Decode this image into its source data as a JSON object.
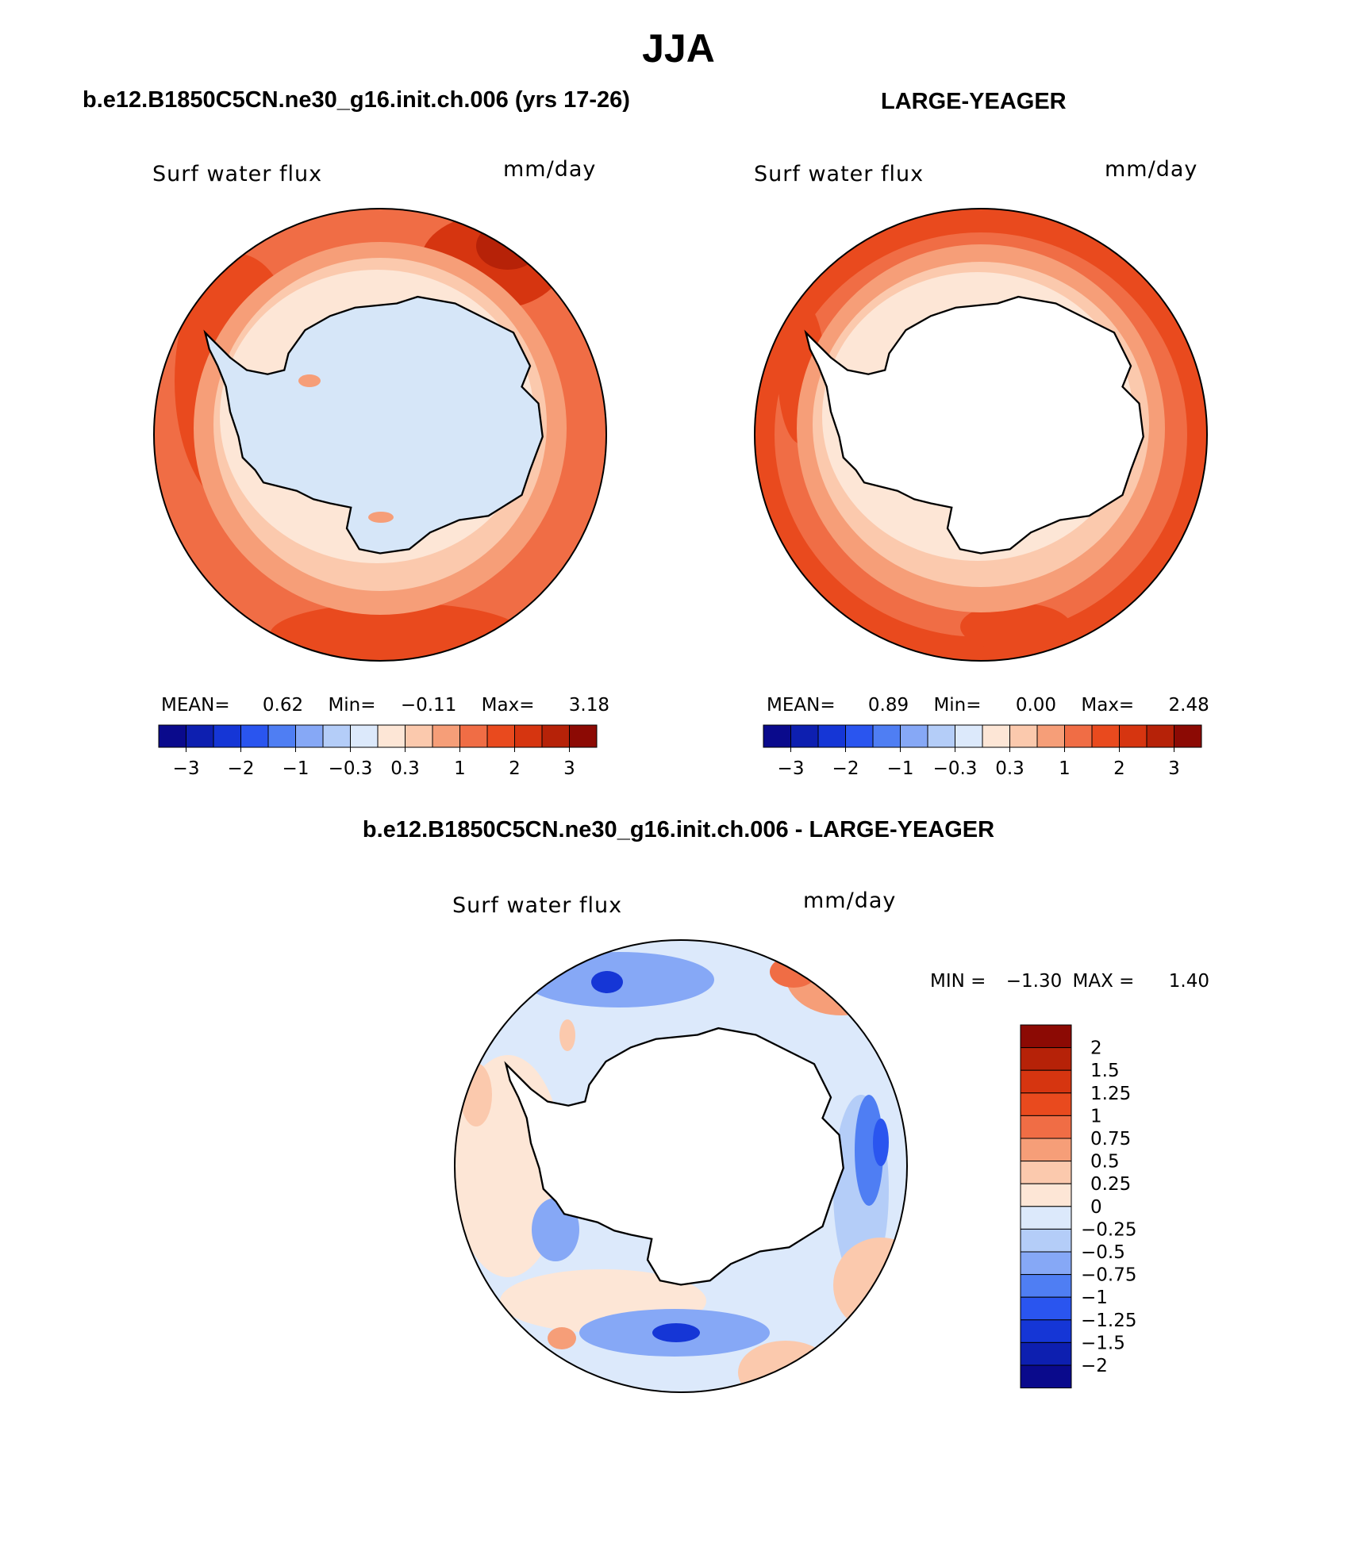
{
  "figure": {
    "season": "JJA",
    "panel_left_title": "b.e12.B1850C5CN.ne30_g16.init.ch.006 (yrs 17-26)",
    "panel_right_title": "LARGE-YEAGER",
    "panel_diff_title": "b.e12.B1850C5CN.ne30_g16.init.ch.006 - LARGE-YEAGER"
  },
  "panels": {
    "left": {
      "variable": "Surf water flux",
      "units": "mm/day",
      "mean_label": "MEAN=",
      "mean": "0.62",
      "min_label": "Min=",
      "min": "−0.11",
      "max_label": "Max=",
      "max": "3.18"
    },
    "right": {
      "variable": "Surf water flux",
      "units": "mm/day",
      "mean_label": "MEAN=",
      "mean": "0.89",
      "min_label": "Min=",
      "min": "0.00",
      "max_label": "Max=",
      "max": "2.48"
    },
    "diff": {
      "variable": "Surf water flux",
      "units": "mm/day",
      "min_label": "MIN =",
      "min": "−1.30",
      "max_label": "MAX =",
      "max": "1.40"
    }
  },
  "colorbar_main": {
    "colors": [
      "#0a0a8c",
      "#0d1fb0",
      "#1536d6",
      "#2a55ef",
      "#4f7ef3",
      "#86a8f6",
      "#b4cdf8",
      "#dce9fb",
      "#fde6d6",
      "#fbc9ad",
      "#f69e78",
      "#f06d45",
      "#e94a1e",
      "#d63510",
      "#b62208",
      "#8c0a04"
    ],
    "tick_labels": [
      "−3",
      "−2",
      "−1",
      "−0.3",
      "0.3",
      "1",
      "2",
      "3"
    ]
  },
  "colorbar_diff": {
    "colors": [
      "#8c0a04",
      "#b62208",
      "#d63510",
      "#e94a1e",
      "#f06d45",
      "#f69e78",
      "#fbc9ad",
      "#fde6d6",
      "#dce9fb",
      "#b4cdf8",
      "#86a8f6",
      "#4f7ef3",
      "#2a55ef",
      "#1536d6",
      "#0d1fb0",
      "#0a0a8c"
    ],
    "tick_labels": [
      "2",
      "1.5",
      "1.25",
      "1",
      "0.75",
      "0.5",
      "0.25",
      "0",
      "−0.25",
      "−0.5",
      "−0.75",
      "−1",
      "−1.25",
      "−1.5",
      "−2"
    ]
  }
}
